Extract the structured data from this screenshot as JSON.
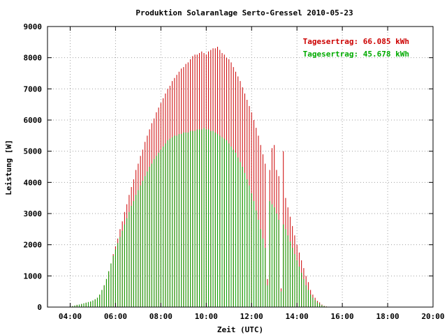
{
  "chart_data": {
    "type": "bar",
    "title": "Produktion Solaranlage Serto-Gressel 2010-05-23",
    "xlabel": "Zeit (UTC)",
    "ylabel": "Leistung [W]",
    "xlim": [
      3.0,
      20.0
    ],
    "ylim": [
      0,
      9000
    ],
    "xticks": [
      4,
      6,
      8,
      10,
      12,
      14,
      16,
      18,
      20
    ],
    "xtick_labels": [
      "04:00",
      "06:00",
      "08:00",
      "10:00",
      "12:00",
      "14:00",
      "16:00",
      "18:00",
      "20:00"
    ],
    "yticks": [
      0,
      1000,
      2000,
      3000,
      4000,
      5000,
      6000,
      7000,
      8000,
      9000
    ],
    "ytick_labels": [
      "0",
      "1000",
      "2000",
      "3000",
      "4000",
      "5000",
      "6000",
      "7000",
      "8000",
      "9000"
    ],
    "grid": true,
    "legend_position": "top-right",
    "sample_interval_hours": 0.1,
    "series": [
      {
        "name": "Tagesertrag: 66.085 kWh",
        "color": "#cc0000",
        "x_start": 4.0,
        "values": [
          10,
          30,
          50,
          70,
          80,
          100,
          120,
          140,
          160,
          180,
          210,
          250,
          300,
          400,
          550,
          700,
          900,
          1150,
          1400,
          1700,
          1950,
          2200,
          2500,
          2750,
          3050,
          3300,
          3600,
          3850,
          4100,
          4400,
          4600,
          4850,
          5050,
          5300,
          5500,
          5700,
          5900,
          6050,
          6250,
          6400,
          6550,
          6700,
          6850,
          7000,
          7100,
          7250,
          7350,
          7450,
          7550,
          7650,
          7700,
          7800,
          7850,
          7950,
          8050,
          8100,
          8100,
          8150,
          8200,
          8150,
          8100,
          8200,
          8250,
          8300,
          8300,
          8350,
          8250,
          8150,
          8100,
          8000,
          7950,
          7850,
          7700,
          7550,
          7400,
          7250,
          7050,
          6850,
          6650,
          6450,
          6250,
          6000,
          5750,
          5500,
          5200,
          4900,
          4600,
          900,
          4400,
          5100,
          5200,
          4400,
          4200,
          600,
          5000,
          3500,
          3200,
          2900,
          2600,
          2300,
          2000,
          1750,
          1500,
          1250,
          1000,
          800,
          550,
          400,
          300,
          200,
          150,
          80,
          40,
          20,
          10
        ]
      },
      {
        "name": "Tagesertrag: 45.678 kWh",
        "color": "#00aa00",
        "x_start": 4.0,
        "values": [
          10,
          30,
          50,
          70,
          80,
          100,
          120,
          140,
          160,
          180,
          210,
          250,
          300,
          400,
          550,
          700,
          900,
          1150,
          1400,
          1650,
          1850,
          2050,
          2250,
          2450,
          2650,
          2850,
          3050,
          3250,
          3400,
          3600,
          3750,
          3900,
          4050,
          4200,
          4350,
          4500,
          4600,
          4750,
          4850,
          4950,
          5050,
          5150,
          5250,
          5350,
          5400,
          5450,
          5500,
          5500,
          5550,
          5550,
          5600,
          5600,
          5600,
          5650,
          5650,
          5650,
          5700,
          5700,
          5700,
          5750,
          5700,
          5700,
          5650,
          5650,
          5600,
          5550,
          5500,
          5450,
          5400,
          5350,
          5250,
          5150,
          5050,
          4950,
          4800,
          4650,
          4500,
          4300,
          4100,
          3900,
          3650,
          3400,
          3100,
          2800,
          2500,
          2200,
          1900,
          700,
          3400,
          3300,
          3200,
          3000,
          2800,
          500,
          2650,
          2500,
          2300,
          2100,
          1900,
          1700,
          1500,
          1300,
          1100,
          900,
          700,
          550,
          400,
          300,
          220,
          150,
          100,
          60,
          30,
          15,
          5
        ]
      }
    ]
  }
}
